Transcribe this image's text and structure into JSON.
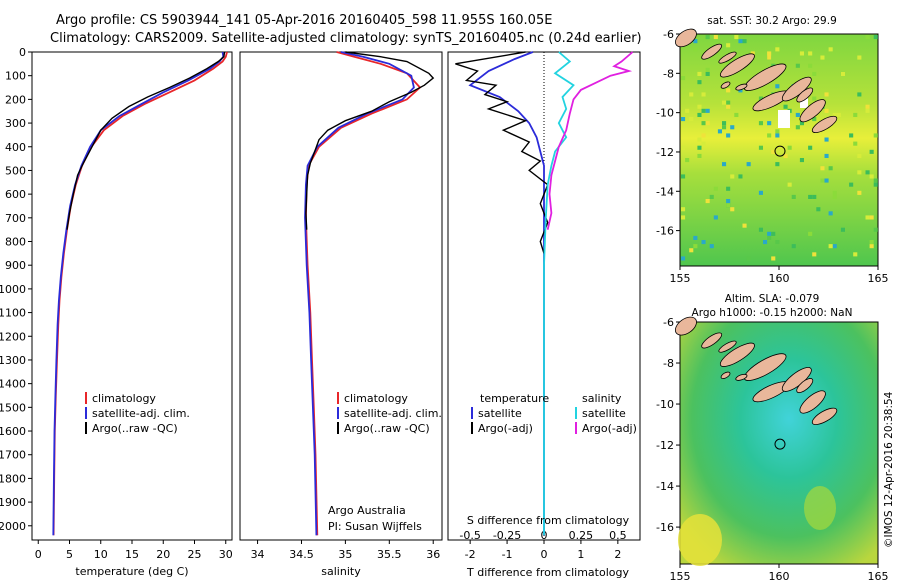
{
  "header": {
    "line1": "Argo profile: CS 5903944_141 05-Apr-2016 20160405_598 11.955S 160.05E",
    "line2": "Climatology: CARS2009. Satellite-adjusted climatology: synTS_20160405.nc (0.24d earlier)"
  },
  "colors": {
    "climatology": "#e8262a",
    "satellite": "#2b2bd9",
    "argo": "#000000",
    "sal_sat": "#22d3e0",
    "sal_argo": "#e020e0",
    "land": "#e9b79b"
  },
  "depth_axis": {
    "ticks": [
      0,
      100,
      200,
      300,
      400,
      500,
      600,
      700,
      800,
      900,
      1000,
      1100,
      1200,
      1300,
      1400,
      1500,
      1600,
      1700,
      1800,
      1900,
      2000
    ]
  },
  "chart_data": [
    {
      "type": "line",
      "panel": "temperature",
      "xlabel": "temperature (deg C)",
      "xlim": [
        -1,
        31
      ],
      "xticks": [
        0,
        5,
        10,
        15,
        20,
        25,
        30
      ],
      "ylim": [
        0,
        2060
      ],
      "y_inverted": true,
      "legend": [
        "climatology",
        "satellite-adj. clim.",
        "Argo(..raw -QC)"
      ],
      "series": [
        {
          "name": "climatology",
          "color": "#e8262a",
          "points": [
            [
              30.2,
              0
            ],
            [
              30,
              20
            ],
            [
              29.5,
              40
            ],
            [
              28,
              70
            ],
            [
              25,
              120
            ],
            [
              21,
              170
            ],
            [
              17,
              220
            ],
            [
              13.5,
              270
            ],
            [
              10.5,
              330
            ],
            [
              8.5,
              400
            ],
            [
              7,
              480
            ],
            [
              6,
              560
            ],
            [
              5.2,
              650
            ],
            [
              4.6,
              750
            ],
            [
              4.1,
              850
            ],
            [
              3.7,
              950
            ],
            [
              3.4,
              1050
            ],
            [
              3.2,
              1150
            ],
            [
              3,
              1300
            ],
            [
              2.8,
              1450
            ],
            [
              2.65,
              1600
            ],
            [
              2.55,
              1800
            ],
            [
              2.45,
              2040
            ]
          ]
        },
        {
          "name": "satellite-adj. clim.",
          "color": "#2b2bd9",
          "points": [
            [
              29.5,
              0
            ],
            [
              29.6,
              20
            ],
            [
              29,
              40
            ],
            [
              27.5,
              70
            ],
            [
              24,
              120
            ],
            [
              20,
              170
            ],
            [
              16.5,
              220
            ],
            [
              13,
              270
            ],
            [
              10,
              330
            ],
            [
              8.3,
              400
            ],
            [
              6.9,
              480
            ],
            [
              5.9,
              560
            ],
            [
              5.1,
              650
            ],
            [
              4.5,
              750
            ],
            [
              4,
              850
            ],
            [
              3.6,
              950
            ],
            [
              3.3,
              1050
            ],
            [
              3.1,
              1150
            ],
            [
              2.9,
              1300
            ],
            [
              2.75,
              1450
            ],
            [
              2.6,
              1600
            ],
            [
              2.5,
              1800
            ],
            [
              2.4,
              2040
            ]
          ]
        },
        {
          "name": "Argo(..raw -QC)",
          "color": "#000000",
          "points": [
            [
              29.8,
              0
            ],
            [
              29.7,
              20
            ],
            [
              28.8,
              40
            ],
            [
              27,
              70
            ],
            [
              24.2,
              110
            ],
            [
              21,
              150
            ],
            [
              17.5,
              190
            ],
            [
              14.5,
              230
            ],
            [
              11.8,
              280
            ],
            [
              10,
              330
            ],
            [
              8.6,
              400
            ],
            [
              7.2,
              470
            ],
            [
              6.3,
              520
            ],
            [
              5.6,
              600
            ],
            [
              5,
              680
            ],
            [
              4.6,
              750
            ]
          ]
        }
      ]
    },
    {
      "type": "line",
      "panel": "salinity",
      "xlabel": "salinity",
      "xlim": [
        33.8,
        36.1
      ],
      "xticks": [
        34,
        34.5,
        35,
        35.5,
        36
      ],
      "ylim": [
        0,
        2060
      ],
      "y_inverted": true,
      "legend": [
        "climatology",
        "satellite-adj. clim.",
        "Argo(..raw -QC)"
      ],
      "annotation": [
        "Argo Australia",
        "PI: Susan Wijffels"
      ],
      "series": [
        {
          "name": "climatology",
          "color": "#e8262a",
          "points": [
            [
              34.9,
              0
            ],
            [
              35.1,
              20
            ],
            [
              35.4,
              50
            ],
            [
              35.7,
              90
            ],
            [
              35.85,
              150
            ],
            [
              35.7,
              200
            ],
            [
              35.3,
              260
            ],
            [
              34.95,
              320
            ],
            [
              34.7,
              400
            ],
            [
              34.58,
              480
            ],
            [
              34.56,
              560
            ],
            [
              34.55,
              700
            ],
            [
              34.57,
              900
            ],
            [
              34.6,
              1100
            ],
            [
              34.62,
              1300
            ],
            [
              34.64,
              1500
            ],
            [
              34.66,
              1700
            ],
            [
              34.68,
              2040
            ]
          ]
        },
        {
          "name": "satellite-adj. clim.",
          "color": "#2b2bd9",
          "points": [
            [
              34.95,
              0
            ],
            [
              35.2,
              20
            ],
            [
              35.5,
              50
            ],
            [
              35.75,
              100
            ],
            [
              35.78,
              150
            ],
            [
              35.65,
              200
            ],
            [
              35.25,
              260
            ],
            [
              34.92,
              320
            ],
            [
              34.68,
              400
            ],
            [
              34.57,
              480
            ],
            [
              34.55,
              560
            ],
            [
              34.54,
              700
            ],
            [
              34.56,
              900
            ],
            [
              34.59,
              1100
            ],
            [
              34.61,
              1300
            ],
            [
              34.63,
              1500
            ],
            [
              34.65,
              1700
            ],
            [
              34.67,
              2040
            ]
          ]
        },
        {
          "name": "Argo(..raw -QC)",
          "color": "#000000",
          "points": [
            [
              35,
              0
            ],
            [
              35.4,
              20
            ],
            [
              35.7,
              40
            ],
            [
              35.95,
              90
            ],
            [
              36,
              110
            ],
            [
              35.9,
              140
            ],
            [
              35.75,
              170
            ],
            [
              35.5,
              210
            ],
            [
              35.3,
              250
            ],
            [
              35,
              290
            ],
            [
              34.8,
              330
            ],
            [
              34.7,
              370
            ],
            [
              34.65,
              420
            ],
            [
              34.6,
              470
            ],
            [
              34.57,
              520
            ],
            [
              34.56,
              600
            ],
            [
              34.55,
              680
            ],
            [
              34.56,
              750
            ]
          ]
        }
      ]
    },
    {
      "type": "line",
      "panel": "difference",
      "xlabel": "T difference from climatology",
      "xlabel_top": "S difference from climatology",
      "xlim": [
        -2.6,
        2.6
      ],
      "xticks": [
        -2,
        -1,
        0,
        1,
        2
      ],
      "s_ticks": [
        "-0.5",
        "-0.25",
        "0",
        "0.25",
        "0.5"
      ],
      "ylim": [
        0,
        2060
      ],
      "y_inverted": true,
      "legend_left": [
        "temperature",
        "satellite",
        "Argo(-adj)"
      ],
      "legend_right": [
        "salinity",
        "satellite",
        "Argo(-adj)"
      ],
      "series": [
        {
          "name": "satellite",
          "color": "#2b2bd9",
          "points": [
            [
              -0.3,
              0
            ],
            [
              -0.8,
              30
            ],
            [
              -1.5,
              80
            ],
            [
              -2,
              140
            ],
            [
              -1.2,
              190
            ],
            [
              -0.7,
              250
            ],
            [
              -0.4,
              300
            ],
            [
              -0.2,
              360
            ],
            [
              -0.1,
              420
            ],
            [
              0,
              480
            ],
            [
              0,
              600
            ],
            [
              0,
              800
            ],
            [
              0,
              1200
            ],
            [
              0,
              1600
            ],
            [
              0,
              2040
            ]
          ]
        },
        {
          "name": "Argo(-adj)",
          "color": "#000000",
          "points": [
            [
              -0.5,
              0
            ],
            [
              -2.4,
              50
            ],
            [
              -1.8,
              80
            ],
            [
              -2.1,
              120
            ],
            [
              -1.3,
              140
            ],
            [
              -1.6,
              180
            ],
            [
              -1.0,
              210
            ],
            [
              -1.5,
              240
            ],
            [
              -0.5,
              290
            ],
            [
              -1.1,
              330
            ],
            [
              -0.4,
              380
            ],
            [
              -0.6,
              420
            ],
            [
              -0.1,
              460
            ],
            [
              -0.4,
              500
            ],
            [
              0.1,
              560
            ],
            [
              -0.1,
              640
            ],
            [
              0.1,
              720
            ],
            [
              -0.1,
              800
            ],
            [
              0,
              850
            ]
          ]
        },
        {
          "name": "satellite",
          "color": "#22d3e0",
          "points": [
            [
              0.4,
              0
            ],
            [
              0.7,
              40
            ],
            [
              0.3,
              90
            ],
            [
              0.8,
              140
            ],
            [
              0.5,
              190
            ],
            [
              0.6,
              240
            ],
            [
              0.4,
              300
            ],
            [
              0.6,
              360
            ],
            [
              0.3,
              420
            ],
            [
              0.2,
              480
            ],
            [
              0.1,
              560
            ],
            [
              0.05,
              700
            ],
            [
              0,
              900
            ],
            [
              0,
              1300
            ],
            [
              0,
              1700
            ],
            [
              0,
              2040
            ]
          ]
        },
        {
          "name": "Argo(-adj)",
          "color": "#e020e0",
          "points": [
            [
              2.4,
              0
            ],
            [
              2.1,
              40
            ],
            [
              1.9,
              60
            ],
            [
              2.3,
              80
            ],
            [
              1.8,
              100
            ],
            [
              1.4,
              130
            ],
            [
              1.0,
              160
            ],
            [
              0.8,
              200
            ],
            [
              0.7,
              260
            ],
            [
              0.6,
              330
            ],
            [
              0.4,
              400
            ],
            [
              0.3,
              460
            ],
            [
              0.2,
              520
            ],
            [
              0.15,
              600
            ],
            [
              0.2,
              680
            ],
            [
              0.1,
              750
            ]
          ]
        }
      ]
    }
  ],
  "maps": [
    {
      "title": "sat. SST: 30.2  Argo: 29.9",
      "xlim": [
        155,
        165
      ],
      "ylim": [
        -17.8,
        -6
      ],
      "xticks": [
        "155",
        "160",
        "165"
      ],
      "yticks": [
        "-6",
        "-8",
        "-10",
        "-12",
        "-14",
        "-16"
      ],
      "profile_location": [
        160.05,
        -11.955
      ]
    },
    {
      "title": "Altim. SLA: -0.079",
      "subtitle": "Argo h1000: -0.15 h2000: NaN",
      "xlim": [
        155,
        165
      ],
      "ylim": [
        -17.8,
        -6
      ],
      "xticks": [
        "155",
        "160",
        "165"
      ],
      "yticks": [
        "-6",
        "-8",
        "-10",
        "-12",
        "-14",
        "-16"
      ],
      "profile_location": [
        160.05,
        -11.955
      ]
    }
  ],
  "credit": "©IMOS 12-Apr-2016 20:38:54"
}
